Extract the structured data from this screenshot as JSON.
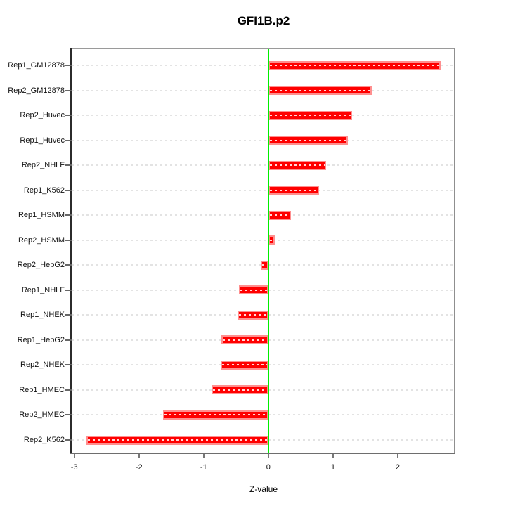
{
  "chart_data": {
    "type": "bar",
    "orientation": "horizontal",
    "title": "GFI1B.p2",
    "xlabel": "Z-value",
    "ylabel": "",
    "categories": [
      "Rep1_GM12878",
      "Rep2_GM12878",
      "Rep2_Huvec",
      "Rep1_Huvec",
      "Rep2_NHLF",
      "Rep1_K562",
      "Rep1_HSMM",
      "Rep2_HSMM",
      "Rep2_HepG2",
      "Rep1_NHLF",
      "Rep1_NHEK",
      "Rep1_HepG2",
      "Rep2_NHEK",
      "Rep1_HMEC",
      "Rep2_HMEC",
      "Rep2_K562"
    ],
    "values": [
      2.66,
      1.6,
      1.3,
      1.23,
      0.89,
      0.79,
      0.35,
      0.1,
      -0.12,
      -0.46,
      -0.48,
      -0.73,
      -0.74,
      -0.88,
      -1.63,
      -2.81
    ],
    "xlim": [
      -3.04,
      2.87
    ],
    "xticks": [
      -3,
      -2,
      -1,
      0,
      1,
      2
    ],
    "grid": "horizontal-dashed",
    "legend": "none",
    "colors": {
      "bar_fill": "#ff0000",
      "bar_border": "#ff8f8f",
      "zero_line": "#00ef00",
      "grid_line": "#e3e3e3",
      "axis_box_top_right": "#999999",
      "axis_left": "#2b2b2b",
      "text": "#111111"
    }
  }
}
